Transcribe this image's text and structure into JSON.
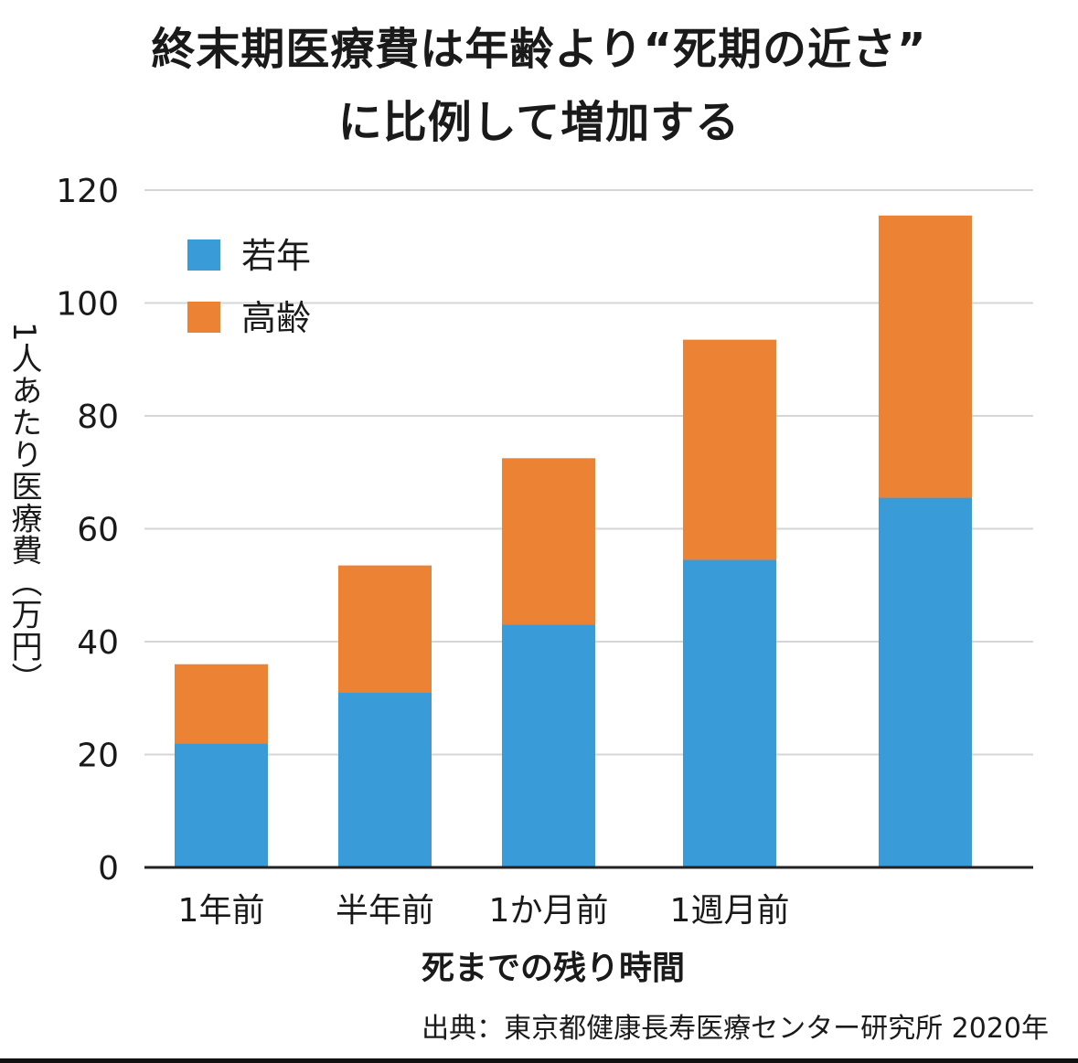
{
  "title_line1": "終末期医療費は年齢より“死期の近さ”",
  "title_line2": "に比例して増加する",
  "source": "出典：東京都健康長寿医療センター研究所 2020年",
  "chart_data": {
    "type": "bar",
    "stacked": true,
    "categories": [
      "1年前",
      "半年前",
      "1か月前",
      "1週月前",
      ""
    ],
    "series": [
      {
        "name": "若年",
        "color": "#3a9bd9",
        "values": [
          22,
          31,
          43,
          54.5,
          65.5
        ]
      },
      {
        "name": "高齢",
        "color": "#eb8234",
        "values": [
          14,
          22.5,
          29.5,
          39,
          50
        ]
      }
    ],
    "xlabel": "死までの残り時間",
    "ylabel": "1人あたり医療費（万円）",
    "ylim": [
      0,
      120
    ],
    "yticks": [
      0,
      20,
      40,
      60,
      80,
      100,
      120
    ],
    "grid": true,
    "legend_position": "top-left"
  }
}
